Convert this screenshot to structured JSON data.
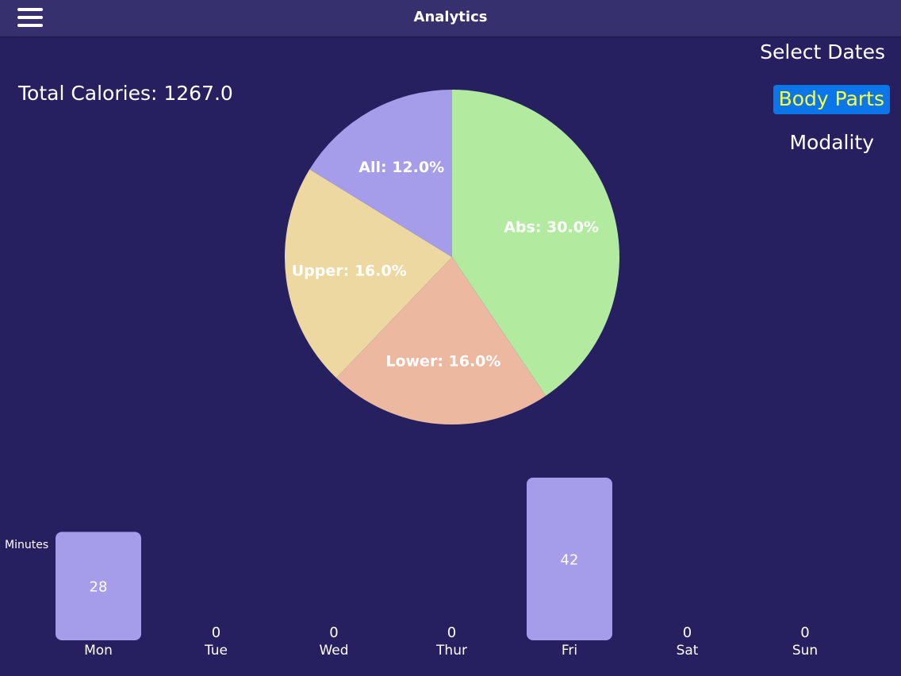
{
  "header": {
    "title": "Analytics",
    "menu_icon": "hamburger-menu-icon"
  },
  "summary": {
    "total_calories_label": "Total Calories: 1267.0"
  },
  "options": {
    "select_dates": "Select Dates",
    "body_parts": "Body Parts",
    "modality": "Modality",
    "selected": "Body Parts"
  },
  "colors": {
    "background": "#272060",
    "navbar": "#37306f",
    "selected_bg": "#0a76ea",
    "selected_text": "#fdfd3c",
    "bar": "#a69dea"
  },
  "chart_data": [
    {
      "type": "pie",
      "slices": [
        {
          "label": "Abs: 30.0%",
          "value": 30.0,
          "color": "#b2eb9f"
        },
        {
          "label": "Lower: 16.0%",
          "value": 16.0,
          "color": "#ecb8a0"
        },
        {
          "label": "Upper: 16.0%",
          "value": 16.0,
          "color": "#ecd8a0"
        },
        {
          "label": "All: 12.0%",
          "value": 12.0,
          "color": "#a69dea"
        }
      ]
    },
    {
      "type": "bar",
      "categories": [
        "Mon",
        "Tue",
        "Wed",
        "Thur",
        "Fri",
        "Sat",
        "Sun"
      ],
      "values": [
        28,
        0,
        0,
        0,
        42,
        0,
        0
      ],
      "ylabel": "Minutes",
      "ylim": [
        0,
        42
      ]
    }
  ]
}
